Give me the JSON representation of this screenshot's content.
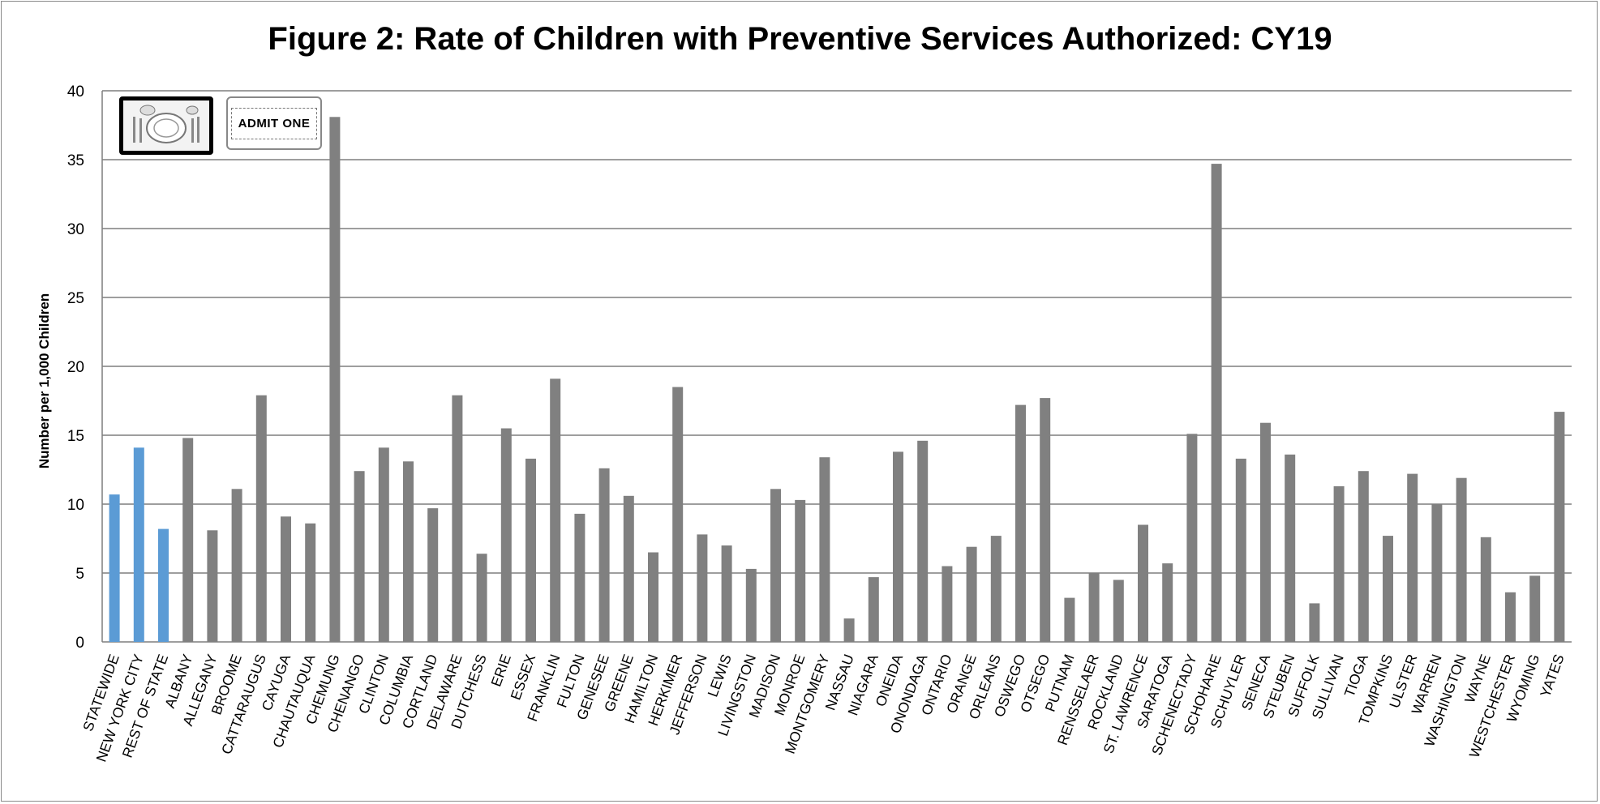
{
  "chart_data": {
    "type": "bar",
    "title": "Figure 2: Rate of Children with Preventive Services Authorized: CY19",
    "ylabel": "Number per 1,000 Children",
    "xlabel": "",
    "ylim": [
      0,
      40
    ],
    "yticks": [
      "0",
      "5",
      "10",
      "15",
      "20",
      "25",
      "30",
      "35",
      "40"
    ],
    "grid": true,
    "colors": {
      "highlight": "#5b9bd5",
      "default": "#808080",
      "grid": "#7f7f7f"
    },
    "categories": [
      "STATEWIDE",
      "NEW YORK CITY",
      "REST OF STATE",
      "ALBANY",
      "ALLEGANY",
      "BROOME",
      "CATTARAUGUS",
      "CAYUGA",
      "CHAUTAUQUA",
      "CHEMUNG",
      "CHENANGO",
      "CLINTON",
      "COLUMBIA",
      "CORTLAND",
      "DELAWARE",
      "DUTCHESS",
      "ERIE",
      "ESSEX",
      "FRANKLIN",
      "FULTON",
      "GENESEE",
      "GREENE",
      "HAMILTON",
      "HERKIMER",
      "JEFFERSON",
      "LEWIS",
      "LIVINGSTON",
      "MADISON",
      "MONROE",
      "MONTGOMERY",
      "NASSAU",
      "NIAGARA",
      "ONEIDA",
      "ONONDAGA",
      "ONTARIO",
      "ORANGE",
      "ORLEANS",
      "OSWEGO",
      "OTSEGO",
      "PUTNAM",
      "RENSSELAER",
      "ROCKLAND",
      "ST. LAWRENCE",
      "SARATOGA",
      "SCHENECTADY",
      "SCHOHARIE",
      "SCHUYLER",
      "SENECA",
      "STEUBEN",
      "SUFFOLK",
      "SULLIVAN",
      "TIOGA",
      "TOMPKINS",
      "ULSTER",
      "WARREN",
      "WASHINGTON",
      "WAYNE",
      "WESTCHESTER",
      "WYOMING",
      "YATES"
    ],
    "values": [
      10.7,
      14.1,
      8.2,
      14.8,
      8.1,
      11.1,
      17.9,
      9.1,
      8.6,
      38.1,
      12.4,
      14.1,
      13.1,
      9.7,
      17.9,
      6.4,
      15.5,
      13.3,
      19.1,
      9.3,
      12.6,
      10.6,
      6.5,
      18.5,
      7.8,
      7.0,
      5.3,
      11.1,
      10.3,
      13.4,
      1.7,
      4.7,
      13.8,
      14.6,
      5.5,
      6.9,
      7.7,
      17.2,
      17.7,
      3.2,
      5.0,
      4.5,
      8.5,
      5.7,
      15.1,
      34.7,
      13.3,
      15.9,
      13.6,
      2.8,
      11.3,
      12.4,
      7.7,
      12.2,
      10.0,
      11.9,
      7.6,
      3.6,
      4.8,
      16.7
    ],
    "highlight_count": 3
  },
  "icons": {
    "plate": "place-setting-icon",
    "ticket": "admit-one-ticket-icon",
    "ticket_text": "ADMIT ONE"
  }
}
